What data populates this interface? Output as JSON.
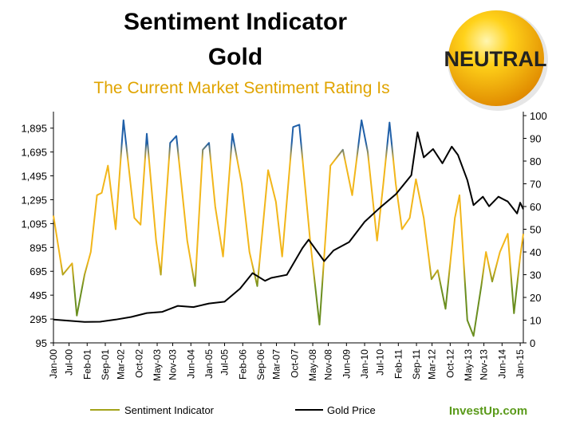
{
  "title_line1": "Sentiment Indicator",
  "title_line2": "Gold",
  "subtitle": "The Current Market Sentiment Rating Is",
  "badge": {
    "label": "NEUTRAL",
    "color": "#f5b400"
  },
  "brand": "InvestUp.com",
  "colors": {
    "sentiment_low": "#6a8e1f",
    "sentiment_mid": "#f2b61a",
    "sentiment_high": "#1f5fa8",
    "gold": "#000000",
    "subtitle": "#e0a400",
    "brand": "#5a9a1a"
  },
  "chart_data": {
    "type": "line",
    "left_axis": {
      "min": 95,
      "max": 2000,
      "ticks": [
        "95",
        "295",
        "495",
        "695",
        "895",
        "1,095",
        "1,295",
        "1,495",
        "1,695",
        "1,895"
      ]
    },
    "right_axis": {
      "min": 0,
      "max": 100,
      "ticks": [
        "0",
        "10",
        "20",
        "30",
        "40",
        "50",
        "60",
        "70",
        "80",
        "90",
        "100"
      ]
    },
    "x_ticks": [
      "Jan-00",
      "Jul-00",
      "Feb-01",
      "Sep-01",
      "Mar-02",
      "Oct-02",
      "May-03",
      "Nov-03",
      "Jun-04",
      "Jan-05",
      "Jul-05",
      "Feb-06",
      "Sep-06",
      "Mar-07",
      "Oct-07",
      "May-08",
      "Nov-08",
      "Jun-09",
      "Jan-10",
      "Jul-10",
      "Feb-11",
      "Sep-11",
      "Mar-12",
      "Oct-12",
      "May-13",
      "Nov-13",
      "Jun-14",
      "Jan-15"
    ],
    "series": [
      {
        "name": "Sentiment Indicator",
        "axis": "right",
        "points": [
          [
            2000.0,
            56
          ],
          [
            2000.3,
            30
          ],
          [
            2000.6,
            35
          ],
          [
            2000.75,
            12
          ],
          [
            2001.0,
            30
          ],
          [
            2001.2,
            40
          ],
          [
            2001.4,
            65
          ],
          [
            2001.55,
            66
          ],
          [
            2001.75,
            78
          ],
          [
            2002.0,
            50
          ],
          [
            2002.25,
            98
          ],
          [
            2002.6,
            55
          ],
          [
            2002.8,
            52
          ],
          [
            2003.0,
            92
          ],
          [
            2003.3,
            45
          ],
          [
            2003.45,
            30
          ],
          [
            2003.75,
            88
          ],
          [
            2003.95,
            91
          ],
          [
            2004.3,
            45
          ],
          [
            2004.55,
            25
          ],
          [
            2004.8,
            85
          ],
          [
            2005.0,
            88
          ],
          [
            2005.2,
            60
          ],
          [
            2005.45,
            38
          ],
          [
            2005.75,
            92
          ],
          [
            2006.05,
            70
          ],
          [
            2006.3,
            40
          ],
          [
            2006.55,
            25
          ],
          [
            2006.9,
            76
          ],
          [
            2007.15,
            62
          ],
          [
            2007.35,
            38
          ],
          [
            2007.7,
            95
          ],
          [
            2007.9,
            96
          ],
          [
            2008.25,
            45
          ],
          [
            2008.55,
            8
          ],
          [
            2008.9,
            78
          ],
          [
            2009.3,
            85
          ],
          [
            2009.6,
            65
          ],
          [
            2009.9,
            98
          ],
          [
            2010.1,
            84
          ],
          [
            2010.4,
            45
          ],
          [
            2010.6,
            70
          ],
          [
            2010.8,
            97
          ],
          [
            2011.0,
            70
          ],
          [
            2011.2,
            50
          ],
          [
            2011.45,
            55
          ],
          [
            2011.65,
            72
          ],
          [
            2011.9,
            55
          ],
          [
            2012.15,
            28
          ],
          [
            2012.35,
            32
          ],
          [
            2012.6,
            15
          ],
          [
            2012.9,
            55
          ],
          [
            2013.05,
            65
          ],
          [
            2013.3,
            10
          ],
          [
            2013.5,
            3
          ],
          [
            2013.75,
            25
          ],
          [
            2013.9,
            40
          ],
          [
            2014.1,
            27
          ],
          [
            2014.35,
            40
          ],
          [
            2014.6,
            48
          ],
          [
            2014.8,
            13
          ],
          [
            2015.0,
            38
          ],
          [
            2015.1,
            48
          ]
        ]
      },
      {
        "name": "Gold Price",
        "axis": "left",
        "points": [
          [
            2000.0,
            290
          ],
          [
            2000.5,
            280
          ],
          [
            2001.0,
            270
          ],
          [
            2001.5,
            272
          ],
          [
            2002.0,
            290
          ],
          [
            2002.5,
            312
          ],
          [
            2003.0,
            345
          ],
          [
            2003.5,
            355
          ],
          [
            2004.0,
            405
          ],
          [
            2004.5,
            395
          ],
          [
            2005.0,
            425
          ],
          [
            2005.5,
            440
          ],
          [
            2006.0,
            550
          ],
          [
            2006.4,
            680
          ],
          [
            2006.8,
            615
          ],
          [
            2007.0,
            640
          ],
          [
            2007.5,
            665
          ],
          [
            2008.0,
            890
          ],
          [
            2008.2,
            960
          ],
          [
            2008.7,
            780
          ],
          [
            2009.0,
            870
          ],
          [
            2009.5,
            940
          ],
          [
            2010.0,
            1110
          ],
          [
            2010.5,
            1230
          ],
          [
            2011.0,
            1340
          ],
          [
            2011.5,
            1500
          ],
          [
            2011.7,
            1860
          ],
          [
            2011.9,
            1650
          ],
          [
            2012.2,
            1720
          ],
          [
            2012.5,
            1600
          ],
          [
            2012.8,
            1740
          ],
          [
            2013.0,
            1670
          ],
          [
            2013.3,
            1460
          ],
          [
            2013.5,
            1250
          ],
          [
            2013.8,
            1320
          ],
          [
            2014.0,
            1240
          ],
          [
            2014.3,
            1320
          ],
          [
            2014.6,
            1280
          ],
          [
            2014.9,
            1180
          ],
          [
            2015.0,
            1270
          ],
          [
            2015.1,
            1215
          ]
        ]
      }
    ]
  }
}
